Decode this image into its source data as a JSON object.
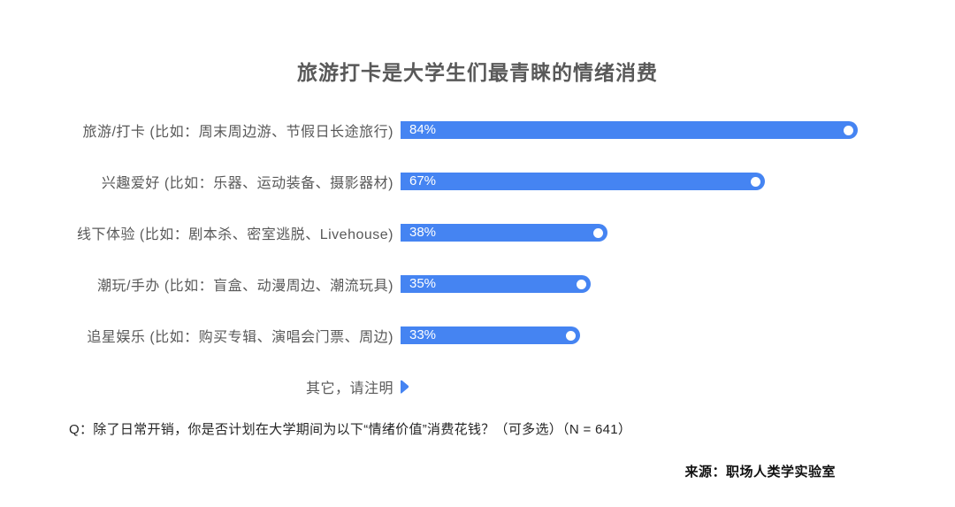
{
  "chart_data": {
    "type": "bar",
    "orientation": "horizontal",
    "title": "旅游打卡是大学生们最青睐的情绪消费",
    "categories": [
      "旅游/打卡 (比如：周末周边游、节假日长途旅行)",
      "兴趣爱好 (比如：乐器、运动装备、摄影器材)",
      "线下体验 (比如：剧本杀、密室逃脱、Livehouse)",
      "潮玩/手办 (比如：盲盒、动漫周边、潮流玩具)",
      "追星娱乐 (比如：购买专辑、演唱会门票、周边)"
    ],
    "values": [
      84,
      67,
      38,
      35,
      33
    ],
    "value_labels": [
      "84%",
      "67%",
      "38%",
      "35%",
      "33%"
    ],
    "other_label": "其它，请注明",
    "unit": "%",
    "xlim": [
      0,
      100
    ],
    "grid": false,
    "legend": false
  },
  "footer": {
    "question": "Q：除了日常开销，你是否计划在大学期间为以下“情绪价值”消费花钱？（可多选）（N = 641）",
    "source": "来源：职场人类学实验室"
  },
  "colors": {
    "bar": "#4584F2",
    "bar_value_text": "#FFFFFF",
    "endpoint_dot": "#FFFFFF",
    "title_text": "#595959",
    "label_text": "#595959",
    "question_text": "#262626",
    "source_text": "#111111",
    "background": "#FFFFFF"
  }
}
